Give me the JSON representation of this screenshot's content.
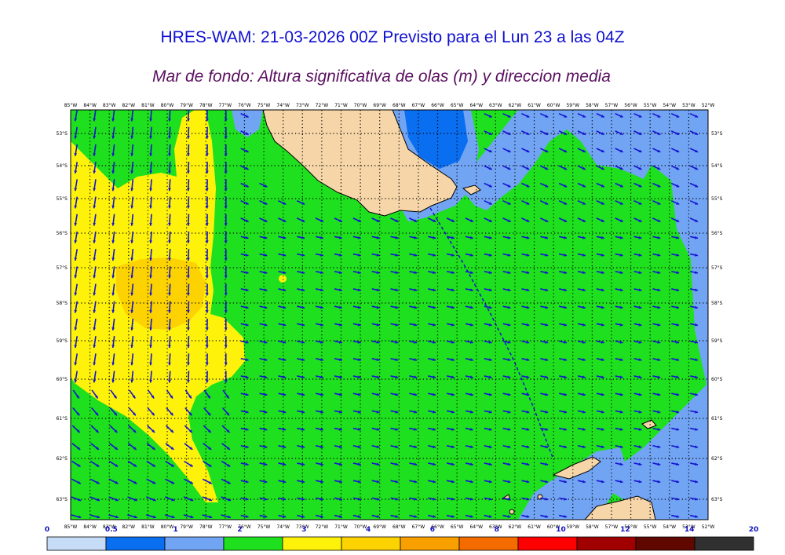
{
  "header": {
    "title": "HRES-WAM: 21-03-2026 00Z Previsto para el Lun 23 a las 04Z",
    "subtitle": "Mar de fondo: Altura significativa de olas (m) y direccion media"
  },
  "map": {
    "lon_labels": [
      "85°W",
      "84°W",
      "83°W",
      "82°W",
      "81°W",
      "80°W",
      "79°W",
      "78°W",
      "77°W",
      "76°W",
      "75°W",
      "74°W",
      "73°W",
      "72°W",
      "71°W",
      "70°W",
      "69°W",
      "68°W",
      "67°W",
      "66°W",
      "65°W",
      "64°W",
      "63°W",
      "62°W",
      "61°W",
      "60°W",
      "59°W",
      "58°W",
      "57°W",
      "56°W",
      "55°W",
      "54°W",
      "53°W",
      "52°W"
    ],
    "lat_labels": [
      "53°S",
      "54°S",
      "55°S",
      "56°S",
      "57°S",
      "58°S",
      "59°S",
      "60°S",
      "61°S",
      "62°S",
      "63°S"
    ],
    "colors": {
      "sea_under_05": "#c6dcf6",
      "band_05_1": "#0a6ef0",
      "band_1_2": "#72a4f4",
      "band_2_3": "#1ee01e",
      "band_3_4": "#fff20a",
      "band_4_6": "#fcd200",
      "land": "#f6d6a8",
      "arrow": "#1414d0"
    }
  },
  "colorbar": {
    "labels": [
      "0",
      "0.5",
      "1",
      "2",
      "3",
      "4",
      "6",
      "8",
      "10",
      "12",
      "14",
      "20"
    ],
    "colors": [
      "#c6dcf6",
      "#0a6ef0",
      "#72a4f4",
      "#1ee01e",
      "#fff20a",
      "#fcd200",
      "#f8a000",
      "#f46c00",
      "#ff0000",
      "#a00000",
      "#600800",
      "#303030"
    ]
  }
}
